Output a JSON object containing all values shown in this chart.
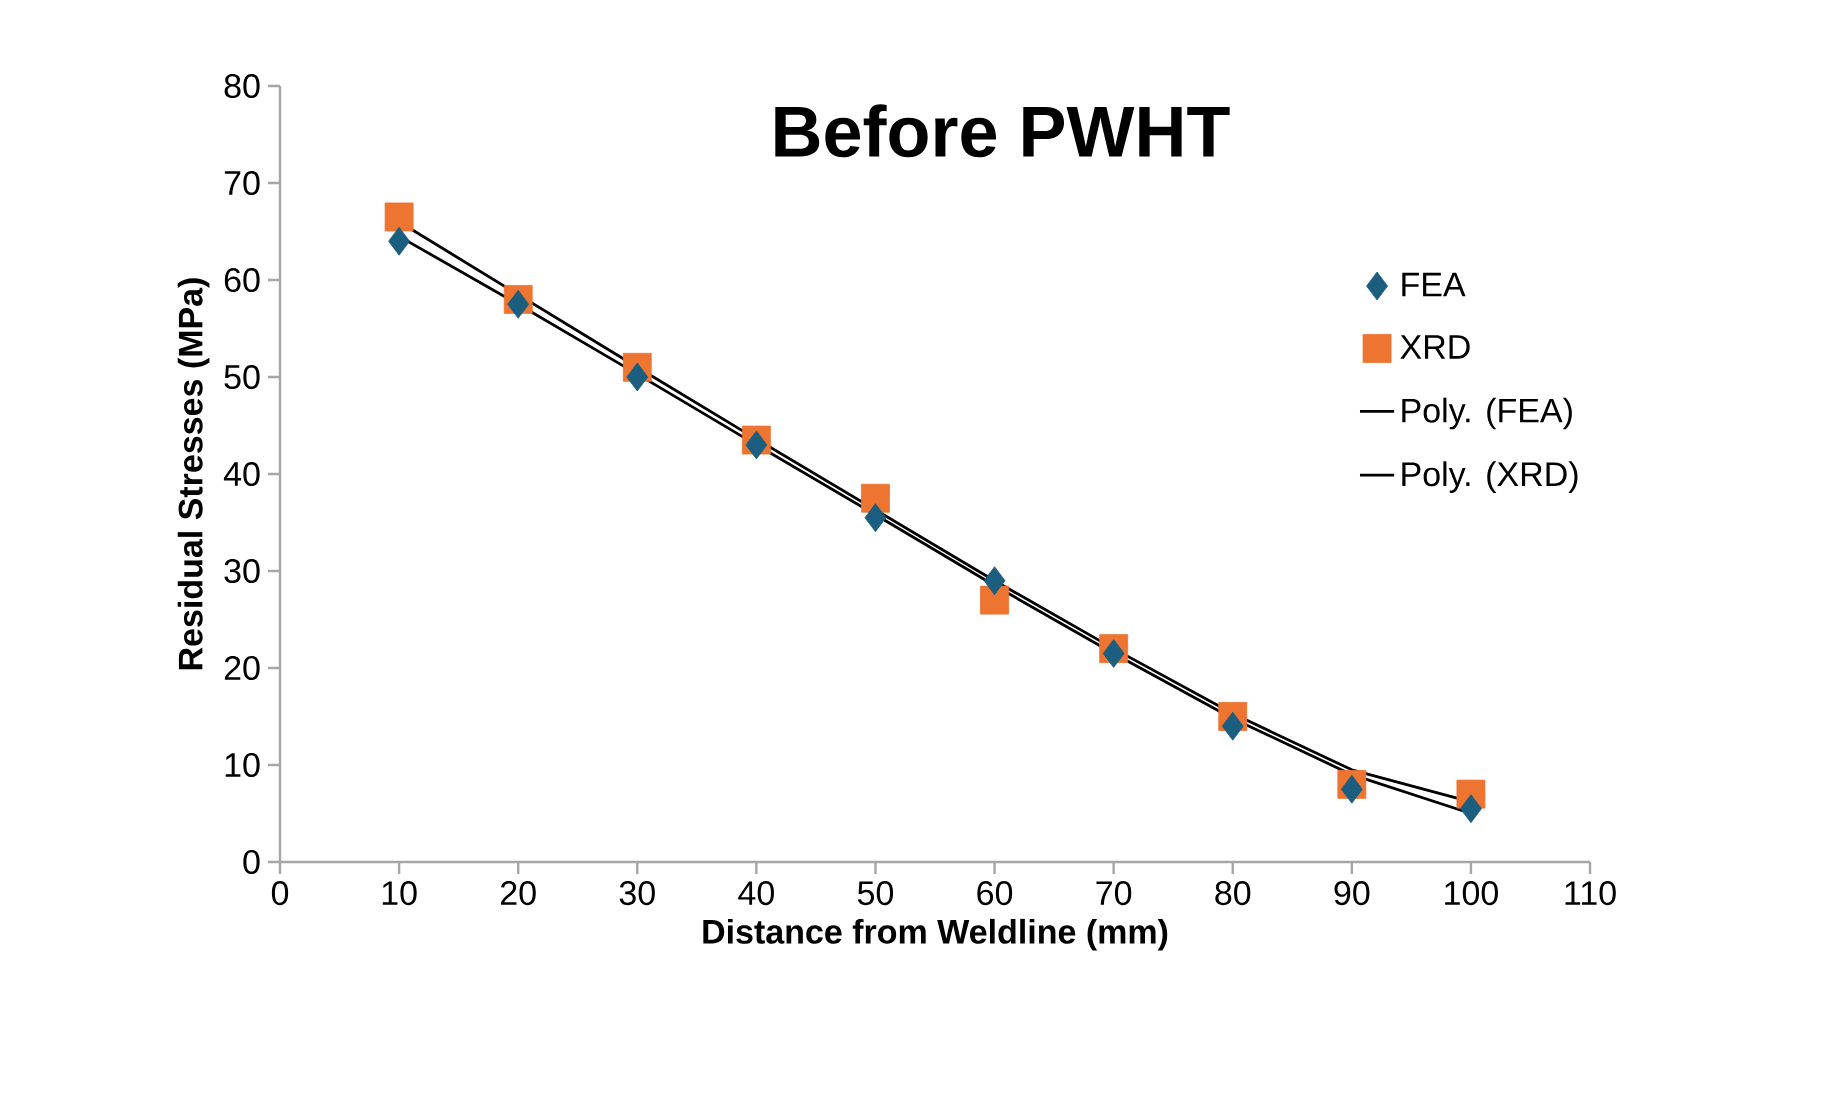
{
  "chart_data": {
    "type": "scatter",
    "title": "Before PWHT",
    "xlabel": "Distance from Weldline (mm)",
    "ylabel": "Residual Stresses (MPa)",
    "xlim": [
      0,
      110
    ],
    "xticks": [
      0,
      10,
      20,
      30,
      40,
      50,
      60,
      70,
      80,
      90,
      100,
      110
    ],
    "ylim": [
      0,
      80
    ],
    "yticks": [
      0,
      10,
      20,
      30,
      40,
      50,
      60,
      70,
      80
    ],
    "grid": false,
    "legend": "right",
    "series": [
      {
        "name": "FEA",
        "marker": "diamond",
        "color": "#1b5e80",
        "x": [
          10,
          20,
          30,
          40,
          50,
          60,
          70,
          80,
          90,
          100
        ],
        "values": [
          64,
          57.5,
          50,
          43,
          35.5,
          29,
          21.5,
          14,
          7.5,
          5.5
        ]
      },
      {
        "name": "XRD",
        "marker": "square",
        "color": "#ed7431",
        "x": [
          10,
          20,
          30,
          40,
          50,
          60,
          70,
          80,
          90,
          100
        ],
        "values": [
          66.5,
          58,
          51,
          43.5,
          37.5,
          27,
          22,
          15,
          8,
          7
        ]
      },
      {
        "name": "Poly. (FEA)",
        "type": "line",
        "marker": "none",
        "line_style": "solid",
        "color": "#000000",
        "x": [
          10,
          20,
          30,
          40,
          50,
          60,
          70,
          80,
          90,
          100
        ],
        "values": [
          64.5,
          57.5,
          50.3,
          43,
          35.8,
          28.5,
          21.5,
          14.8,
          9,
          5
        ]
      },
      {
        "name": "Poly. (XRD)",
        "type": "line",
        "marker": "none",
        "line_style": "solid",
        "color": "#000000",
        "x": [
          10,
          20,
          30,
          40,
          50,
          60,
          70,
          80,
          90,
          100
        ],
        "values": [
          66,
          58.5,
          51,
          43.6,
          36.3,
          29,
          22,
          15.3,
          9.5,
          6.2
        ]
      }
    ]
  }
}
